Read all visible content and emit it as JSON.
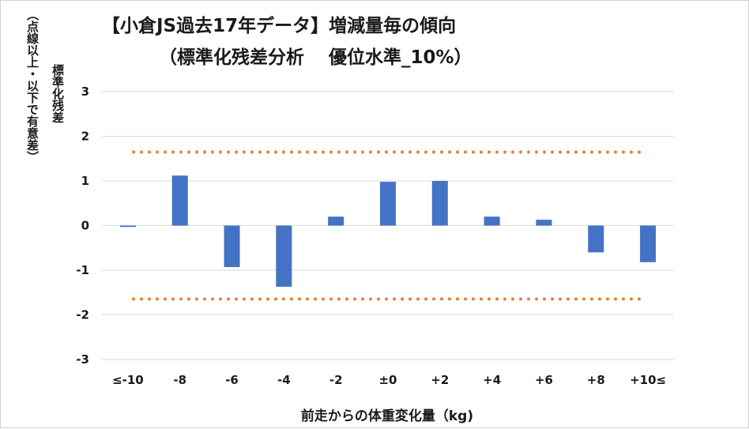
{
  "chart_data": {
    "type": "bar",
    "title": "【小倉JS過去17年データ】増減量毎の傾向",
    "subtitle": "（標準化残差分析　 優位水準_10%）",
    "xlabel": "前走からの体重変化量（kg)",
    "ylabel": "標準化残差",
    "ylabel_note": "（点線以上・以下で有意差）",
    "categories": [
      "≤-10",
      "-8",
      "-6",
      "-4",
      "-2",
      "±0",
      "+2",
      "+4",
      "+6",
      "+8",
      "+10≤"
    ],
    "values": [
      -0.03,
      1.12,
      -0.93,
      -1.37,
      0.2,
      0.98,
      1.0,
      0.2,
      0.13,
      -0.6,
      -0.82
    ],
    "ylim": [
      -3,
      3
    ],
    "yticks": [
      "-3",
      "-2",
      "-1",
      "0",
      "1",
      "2",
      "3"
    ],
    "threshold_lines": [
      1.645,
      -1.645
    ],
    "grid": true,
    "colors": {
      "bar": "#4472C4",
      "threshold": "#ED7D31",
      "grid": "#d9d9d9"
    }
  }
}
